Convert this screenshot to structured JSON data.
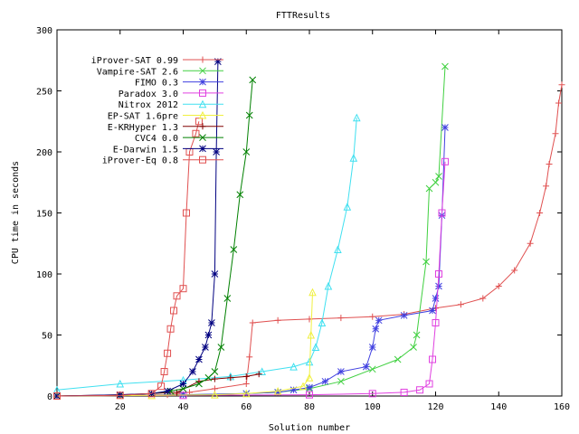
{
  "chart_data": {
    "type": "line",
    "title": "FTTResults",
    "xlabel": "Solution number",
    "ylabel": "CPU time in seconds",
    "xlim": [
      0,
      160
    ],
    "ylim": [
      0,
      300
    ],
    "xticks": [
      20,
      40,
      60,
      80,
      100,
      120,
      140,
      160
    ],
    "yticks": [
      0,
      50,
      100,
      150,
      200,
      250,
      300
    ],
    "legend_position": "top-left",
    "grid": false,
    "series": [
      {
        "name": "iProver-SAT 0.99",
        "color": "#e05050",
        "marker": "plus",
        "points": [
          [
            0,
            0
          ],
          [
            20,
            0.5
          ],
          [
            35,
            1
          ],
          [
            42,
            3
          ],
          [
            50,
            6
          ],
          [
            60,
            10
          ],
          [
            61,
            32
          ],
          [
            62,
            60
          ],
          [
            70,
            62
          ],
          [
            80,
            63
          ],
          [
            90,
            64
          ],
          [
            100,
            65
          ],
          [
            110,
            67
          ],
          [
            120,
            72
          ],
          [
            128,
            75
          ],
          [
            135,
            80
          ],
          [
            140,
            90
          ],
          [
            145,
            103
          ],
          [
            150,
            125
          ],
          [
            153,
            150
          ],
          [
            155,
            172
          ],
          [
            156,
            190
          ],
          [
            158,
            215
          ],
          [
            159,
            240
          ],
          [
            160,
            255
          ]
        ]
      },
      {
        "name": "Vampire-SAT 2.6",
        "color": "#40d040",
        "marker": "x",
        "points": [
          [
            0,
            0
          ],
          [
            40,
            1
          ],
          [
            60,
            2
          ],
          [
            70,
            3
          ],
          [
            80,
            6
          ],
          [
            90,
            12
          ],
          [
            100,
            22
          ],
          [
            108,
            30
          ],
          [
            113,
            40
          ],
          [
            114,
            50
          ],
          [
            117,
            110
          ],
          [
            118,
            170
          ],
          [
            120,
            175
          ],
          [
            121,
            180
          ],
          [
            123,
            270
          ]
        ]
      },
      {
        "name": "FIMO 0.3",
        "color": "#4040e0",
        "marker": "star",
        "points": [
          [
            0,
            0
          ],
          [
            40,
            1
          ],
          [
            60,
            2
          ],
          [
            70,
            3
          ],
          [
            75,
            5
          ],
          [
            80,
            7
          ],
          [
            85,
            12
          ],
          [
            90,
            20
          ],
          [
            98,
            24
          ],
          [
            100,
            40
          ],
          [
            101,
            55
          ],
          [
            102,
            62
          ],
          [
            110,
            66
          ],
          [
            119,
            70
          ],
          [
            120,
            80
          ],
          [
            121,
            90
          ],
          [
            122,
            148
          ],
          [
            123,
            220
          ]
        ]
      },
      {
        "name": "Paradox 3.0",
        "color": "#e040e0",
        "marker": "square",
        "points": [
          [
            0,
            0
          ],
          [
            40,
            0.5
          ],
          [
            80,
            1
          ],
          [
            100,
            2
          ],
          [
            110,
            3
          ],
          [
            115,
            5
          ],
          [
            118,
            10
          ],
          [
            119,
            30
          ],
          [
            120,
            60
          ],
          [
            121,
            100
          ],
          [
            122,
            150
          ],
          [
            123,
            192
          ]
        ]
      },
      {
        "name": "Nitrox 2012",
        "color": "#40e0f0",
        "marker": "triangle",
        "points": [
          [
            0,
            5
          ],
          [
            20,
            10
          ],
          [
            40,
            13
          ],
          [
            55,
            16
          ],
          [
            65,
            20
          ],
          [
            75,
            24
          ],
          [
            80,
            28
          ],
          [
            82,
            40
          ],
          [
            84,
            60
          ],
          [
            86,
            90
          ],
          [
            89,
            120
          ],
          [
            92,
            155
          ],
          [
            94,
            195
          ],
          [
            95,
            228
          ]
        ]
      },
      {
        "name": "EP-SAT 1.6pre",
        "color": "#f0f040",
        "marker": "triangle",
        "points": [
          [
            0,
            0
          ],
          [
            30,
            0.5
          ],
          [
            50,
            1
          ],
          [
            60,
            2
          ],
          [
            70,
            4
          ],
          [
            78,
            8
          ],
          [
            80,
            15
          ],
          [
            80.5,
            50
          ],
          [
            81,
            85
          ]
        ]
      },
      {
        "name": "E-KRHyper 1.3",
        "color": "#800000",
        "marker": "plus",
        "points": [
          [
            0,
            0
          ],
          [
            20,
            1
          ],
          [
            30,
            2
          ],
          [
            38,
            3
          ],
          [
            45,
            12
          ],
          [
            50,
            14
          ],
          [
            55,
            15
          ],
          [
            60,
            16
          ],
          [
            64,
            18
          ]
        ]
      },
      {
        "name": "CVC4 0.0",
        "color": "#008000",
        "marker": "x",
        "points": [
          [
            0,
            0
          ],
          [
            20,
            0.5
          ],
          [
            30,
            2
          ],
          [
            36,
            4
          ],
          [
            40,
            6
          ],
          [
            45,
            10
          ],
          [
            48,
            15
          ],
          [
            50,
            20
          ],
          [
            52,
            40
          ],
          [
            54,
            80
          ],
          [
            56,
            120
          ],
          [
            58,
            165
          ],
          [
            60,
            200
          ],
          [
            61,
            230
          ],
          [
            62,
            259
          ]
        ]
      },
      {
        "name": "E-Darwin 1.5",
        "color": "#000080",
        "marker": "star",
        "points": [
          [
            0,
            0
          ],
          [
            20,
            1
          ],
          [
            30,
            2
          ],
          [
            35,
            4
          ],
          [
            40,
            10
          ],
          [
            43,
            20
          ],
          [
            45,
            30
          ],
          [
            47,
            40
          ],
          [
            48,
            50
          ],
          [
            49,
            60
          ],
          [
            50,
            100
          ],
          [
            50.5,
            200
          ],
          [
            51,
            274
          ]
        ]
      },
      {
        "name": "iProver-Eq 0.8",
        "color": "#e05050",
        "marker": "square",
        "points": [
          [
            0,
            0
          ],
          [
            20,
            0.5
          ],
          [
            30,
            2
          ],
          [
            33,
            8
          ],
          [
            34,
            20
          ],
          [
            35,
            35
          ],
          [
            36,
            55
          ],
          [
            37,
            70
          ],
          [
            38,
            82
          ],
          [
            40,
            88
          ],
          [
            41,
            150
          ],
          [
            42,
            200
          ],
          [
            44,
            215
          ],
          [
            45,
            225
          ]
        ]
      }
    ]
  }
}
